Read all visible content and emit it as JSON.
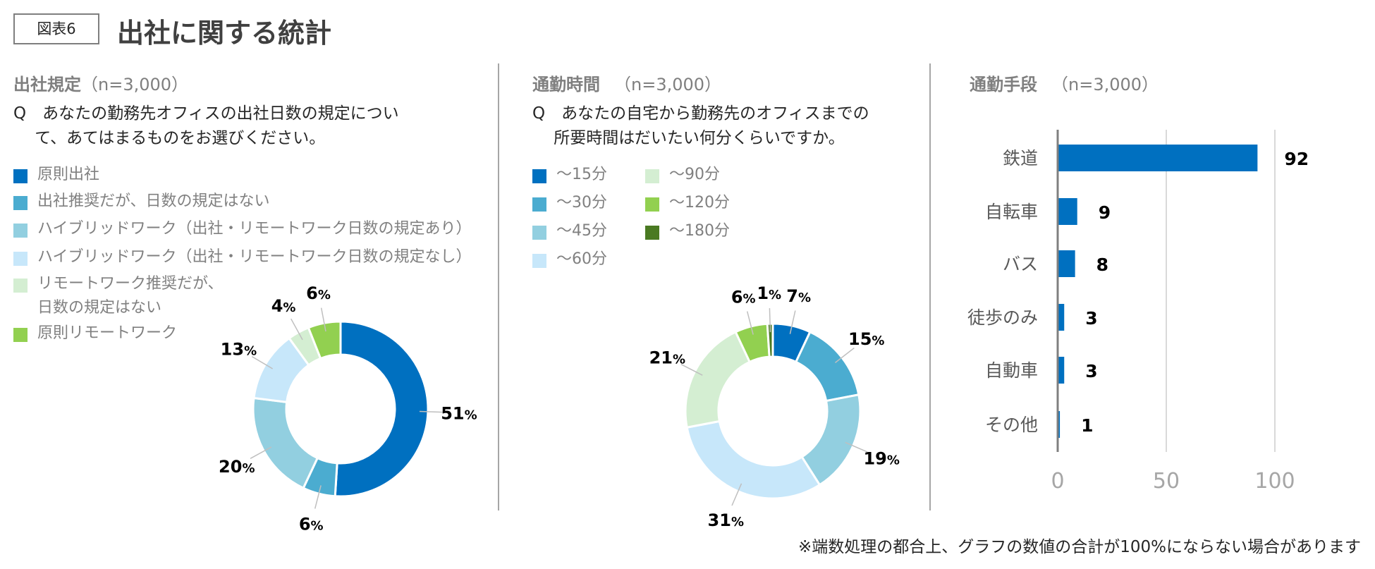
{
  "header": {
    "figure_label": "図表6",
    "title": "出社に関する統計"
  },
  "footnote": "※端数処理の都合上、グラフの数値の合計が100%にならない場合があります",
  "sections": [
    {
      "title": "出社規定",
      "n": "（n=3,000）",
      "question": [
        "Q　あなたの勤務先オフィスの出社日数の規定につい",
        "　 て、あてはまるものをお選びください。"
      ]
    },
    {
      "title": "通勤時間",
      "n": "（n=3,000）",
      "question": [
        "Q　あなたの自宅から勤務先のオフィスまでの",
        "　 所要時間はだいたい何分くらいですか。"
      ]
    },
    {
      "title": "通勤手段",
      "n": "（n=3,000）"
    }
  ],
  "chart_data": [
    {
      "type": "pie",
      "donut": true,
      "unit": "%",
      "categories": [
        "原則出社",
        "出社推奨だが、日数の規定はない",
        "ハイブリッドワーク（出社・リモートワーク日数の規定あり）",
        "ハイブリッドワーク（出社・リモートワーク日数の規定なし）",
        "リモートワーク推奨だが、\n日数の規定はない",
        "原則リモートワーク"
      ],
      "values": [
        51,
        6,
        20,
        13,
        4,
        6
      ],
      "colors": [
        "#0070C0",
        "#4BACD0",
        "#92CFE0",
        "#C7E7FA",
        "#D4EED2",
        "#92D050"
      ],
      "legend": "top-left"
    },
    {
      "type": "pie",
      "donut": true,
      "unit": "%",
      "categories": [
        "～15分",
        "～30分",
        "～45分",
        "～60分",
        "～90分",
        "～120分",
        "～180分"
      ],
      "values": [
        7,
        15,
        19,
        31,
        21,
        6,
        1
      ],
      "colors": [
        "#0070C0",
        "#4BACD0",
        "#92CFE0",
        "#C7E7FA",
        "#D4EED2",
        "#92D050",
        "#4A7A22"
      ],
      "legend": "top-left"
    },
    {
      "type": "bar",
      "orientation": "horizontal",
      "categories": [
        "鉄道",
        "自転車",
        "バス",
        "徒歩のみ",
        "自動車",
        "その他"
      ],
      "values": [
        92,
        9,
        8,
        3,
        3,
        1
      ],
      "xlim": [
        0,
        100
      ],
      "xticks": [
        "0",
        "50",
        "100"
      ],
      "grid": true,
      "color": "#0070C0"
    }
  ]
}
